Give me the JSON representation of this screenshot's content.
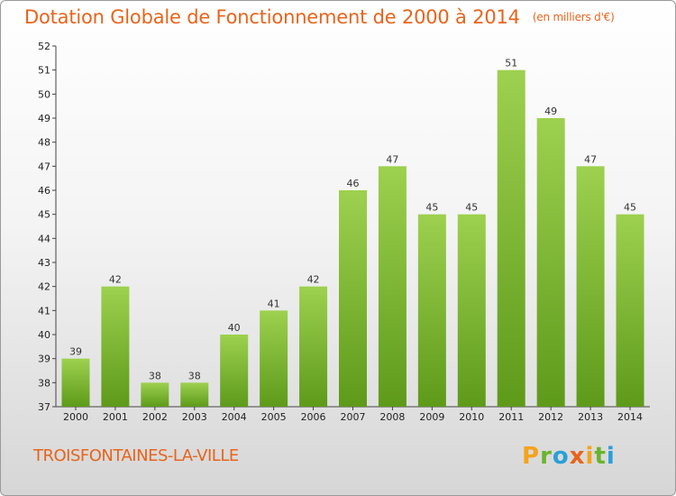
{
  "header": {
    "title": "Dotation Globale de Fonctionnement de 2000 à 2014",
    "subtitle": "(en milliers d'€)"
  },
  "footer": {
    "commune": "TROISFONTAINES-LA-VILLE",
    "logo": [
      "P",
      "r",
      "o",
      "x",
      "i",
      "t",
      "i"
    ]
  },
  "colors": {
    "title": "#e8641b",
    "bar_top": "#9dd14f",
    "bar_bottom": "#5e9a1a",
    "axis": "#444444"
  },
  "chart_data": {
    "type": "bar",
    "categories": [
      "2000",
      "2001",
      "2002",
      "2003",
      "2004",
      "2005",
      "2006",
      "2007",
      "2008",
      "2009",
      "2010",
      "2011",
      "2012",
      "2013",
      "2014"
    ],
    "values": [
      39,
      42,
      38,
      38,
      40,
      41,
      42,
      46,
      47,
      45,
      45,
      51,
      49,
      47,
      45
    ],
    "ylim": [
      37,
      52
    ],
    "yticks": [
      37,
      38,
      39,
      40,
      41,
      42,
      43,
      44,
      45,
      46,
      47,
      48,
      49,
      50,
      51,
      52
    ],
    "grid": false,
    "title": "Dotation Globale de Fonctionnement de 2000 à 2014",
    "subtitle": "(en milliers d'€)"
  }
}
